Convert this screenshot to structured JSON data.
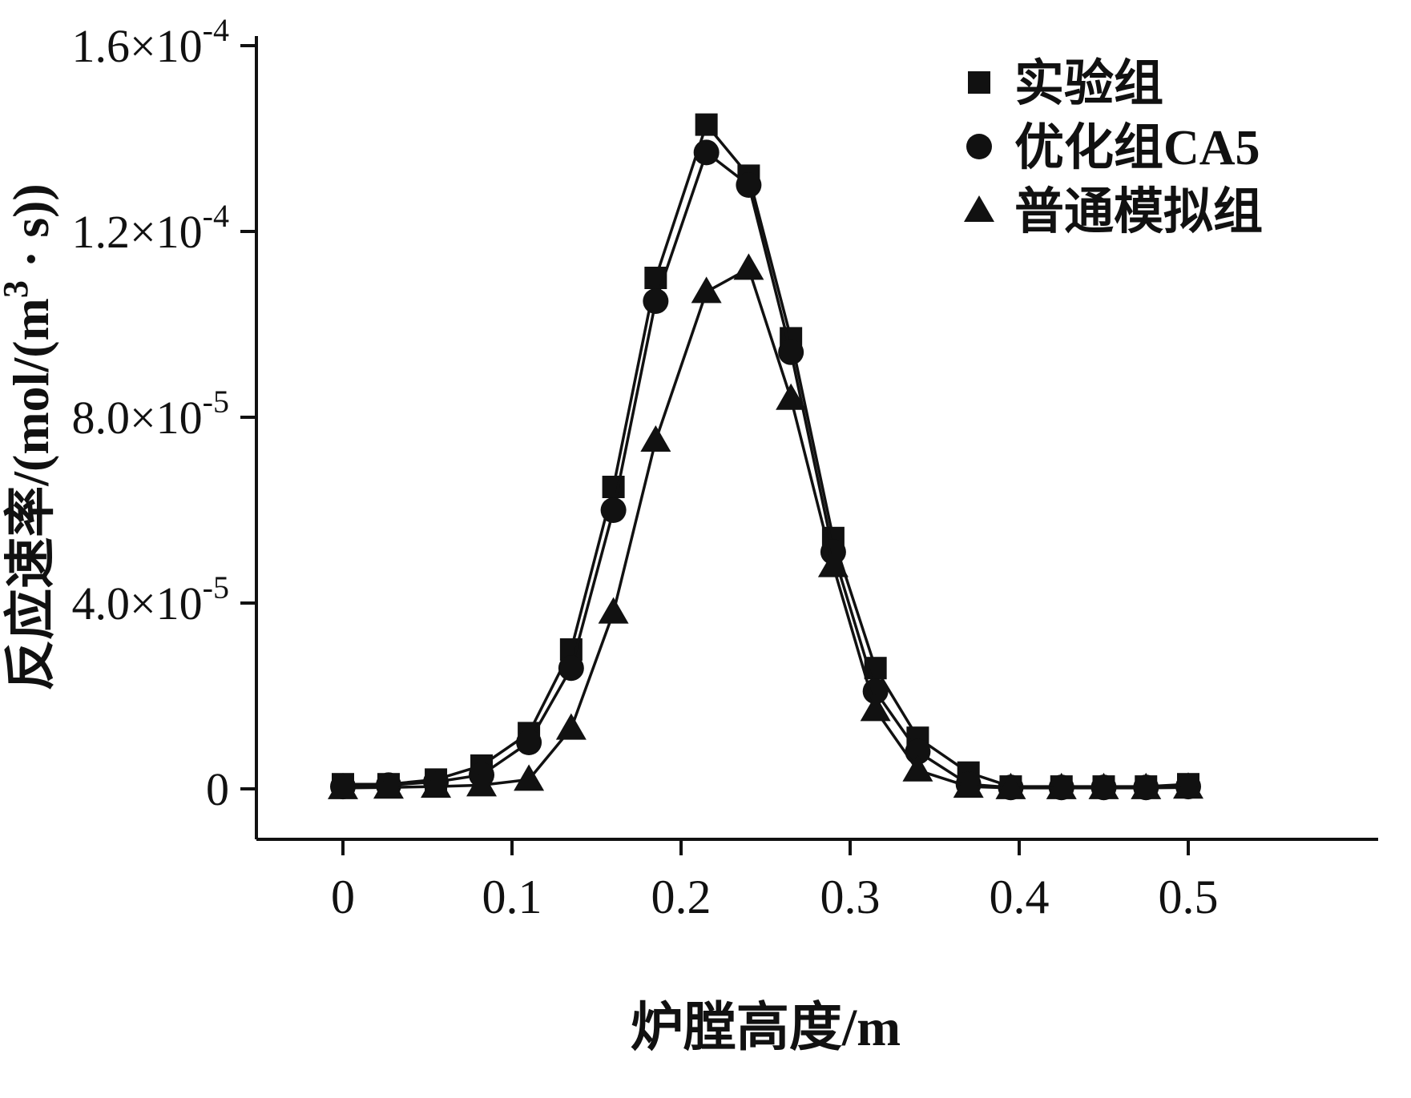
{
  "chart_data": {
    "type": "line",
    "title": "",
    "xlabel": "炉膛高度/m",
    "ylabel_parts": [
      {
        "t": "反应速率/(mol/(m"
      },
      {
        "t": "3",
        "s": true
      },
      {
        "t": " · s))"
      }
    ],
    "xlim": [
      0,
      0.5
    ],
    "ylim": [
      0,
      0.00016
    ],
    "grid": false,
    "legend_position": "top-right-inside",
    "xticks": [
      {
        "value": 0,
        "label": "0"
      },
      {
        "value": 0.1,
        "label": "0.1"
      },
      {
        "value": 0.2,
        "label": "0.2"
      },
      {
        "value": 0.3,
        "label": "0.3"
      },
      {
        "value": 0.4,
        "label": "0.4"
      },
      {
        "value": 0.5,
        "label": "0.5"
      }
    ],
    "yticks": [
      {
        "value": 0,
        "parts": [
          {
            "t": "0"
          }
        ]
      },
      {
        "value": 4e-05,
        "parts": [
          {
            "t": "4.0×10"
          },
          {
            "t": "-5",
            "s": true
          }
        ]
      },
      {
        "value": 8e-05,
        "parts": [
          {
            "t": "8.0×10"
          },
          {
            "t": "-5",
            "s": true
          }
        ]
      },
      {
        "value": 0.00012,
        "parts": [
          {
            "t": "1.2×10"
          },
          {
            "t": "-4",
            "s": true
          }
        ]
      },
      {
        "value": 0.00016,
        "parts": [
          {
            "t": "1.6×10"
          },
          {
            "t": "-4",
            "s": true
          }
        ]
      }
    ],
    "x": [
      0,
      0.027,
      0.055,
      0.082,
      0.11,
      0.135,
      0.16,
      0.185,
      0.215,
      0.24,
      0.265,
      0.29,
      0.315,
      0.34,
      0.37,
      0.395,
      0.425,
      0.45,
      0.475,
      0.5
    ],
    "series": [
      {
        "name": "实验组",
        "marker": "square",
        "color": "#111111",
        "values": [
          1e-06,
          1e-06,
          2e-06,
          5e-06,
          1.2e-05,
          3e-05,
          6.5e-05,
          0.00011,
          0.000143,
          0.000132,
          9.7e-05,
          5.4e-05,
          2.6e-05,
          1.1e-05,
          3.5e-06,
          5e-07,
          5e-07,
          5e-07,
          5e-07,
          1e-06
        ]
      },
      {
        "name": "优化组CA5",
        "marker": "circle",
        "color": "#111111",
        "values": [
          5e-07,
          8e-07,
          1.5e-06,
          3e-06,
          1e-05,
          2.6e-05,
          6e-05,
          0.000105,
          0.000137,
          0.00013,
          9.4e-05,
          5.1e-05,
          2.1e-05,
          8e-06,
          1e-06,
          3e-07,
          3e-07,
          3e-07,
          3e-07,
          5e-07
        ]
      },
      {
        "name": "普通模拟组",
        "marker": "triangle",
        "color": "#111111",
        "values": [
          2e-07,
          3e-07,
          5e-07,
          8e-07,
          2e-06,
          1.3e-05,
          3.8e-05,
          7.5e-05,
          0.000107,
          0.000112,
          8.4e-05,
          4.8e-05,
          1.7e-05,
          4e-06,
          5e-07,
          2e-07,
          2e-07,
          2e-07,
          2e-07,
          3e-07
        ]
      }
    ]
  }
}
